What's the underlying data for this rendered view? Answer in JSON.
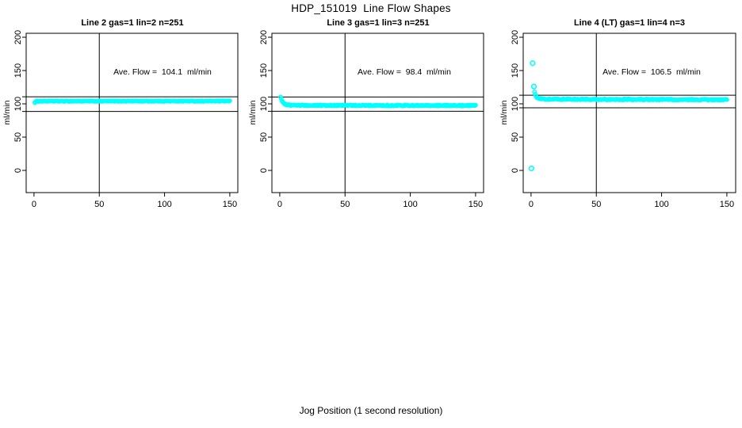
{
  "page": {
    "title": "HDP_151019  Line Flow Shapes",
    "xlabel": "Jog Position (1 second resolution)"
  },
  "colors": {
    "points": "#00ffff",
    "axis": "#000000",
    "background": "#ffffff"
  },
  "chart_data": [
    {
      "type": "scatter",
      "title": "Line 2 gas=1 lin=2 n=251",
      "annotation": "Ave. Flow =  104.1  ml/min",
      "ave_flow_ml_min": 104.1,
      "n": 251,
      "ylabel": "ml/min",
      "xlim": [
        0,
        150
      ],
      "ylim": [
        0,
        200
      ],
      "xticks": [
        0,
        50,
        100,
        150
      ],
      "yticks": [
        0,
        50,
        100,
        150,
        200
      ],
      "vline_x": 50,
      "hlines": [
        110.5,
        88.5
      ],
      "n_points": 251,
      "x_start": 0.6,
      "x_end": 150,
      "jitter": 0.5,
      "profile": [
        [
          0.6,
          102.0
        ],
        [
          1.2,
          103.2
        ],
        [
          2.5,
          104.0
        ],
        [
          150,
          104.1
        ]
      ],
      "outliers": []
    },
    {
      "type": "scatter",
      "title": "Line 3 gas=1 lin=3 n=251",
      "annotation": "Ave. Flow =  98.4  ml/min",
      "ave_flow_ml_min": 98.4,
      "n": 251,
      "ylabel": "ml/min",
      "xlim": [
        0,
        150
      ],
      "ylim": [
        0,
        200
      ],
      "xticks": [
        0,
        50,
        100,
        150
      ],
      "yticks": [
        0,
        50,
        100,
        150,
        200
      ],
      "vline_x": 50,
      "hlines": [
        110.2,
        88.8
      ],
      "n_points": 251,
      "x_start": 0.6,
      "x_end": 150,
      "jitter": 0.8,
      "profile": [
        [
          0.6,
          110.3
        ],
        [
          1.2,
          107.5
        ],
        [
          2.0,
          104.0
        ],
        [
          3.0,
          101.3
        ],
        [
          4.5,
          99.3
        ],
        [
          6.5,
          98.2
        ],
        [
          10,
          97.7
        ],
        [
          150,
          97.4
        ]
      ],
      "outliers": []
    },
    {
      "type": "scatter",
      "title": "Line 4 (LT) gas=1 lin=4 n=3",
      "annotation": "Ave. Flow =  106.5  ml/min",
      "ave_flow_ml_min": 106.5,
      "n": 3,
      "ylabel": "ml/min",
      "xlim": [
        0,
        150
      ],
      "ylim": [
        0,
        200
      ],
      "xticks": [
        0,
        50,
        100,
        150
      ],
      "yticks": [
        0,
        50,
        100,
        150,
        200
      ],
      "vline_x": 50,
      "hlines": [
        113,
        94
      ],
      "n_points": 248,
      "x_start": 2.6,
      "x_end": 150,
      "jitter": 0.8,
      "profile": [
        [
          2.6,
          117.5
        ],
        [
          3.4,
          112.5
        ],
        [
          4.5,
          109.5
        ],
        [
          6.5,
          107.8
        ],
        [
          10,
          107.0
        ],
        [
          60,
          106.7
        ],
        [
          150,
          106.2
        ]
      ],
      "outliers": [
        [
          0.3,
          3
        ],
        [
          1.2,
          161
        ],
        [
          2.2,
          126
        ]
      ]
    }
  ]
}
